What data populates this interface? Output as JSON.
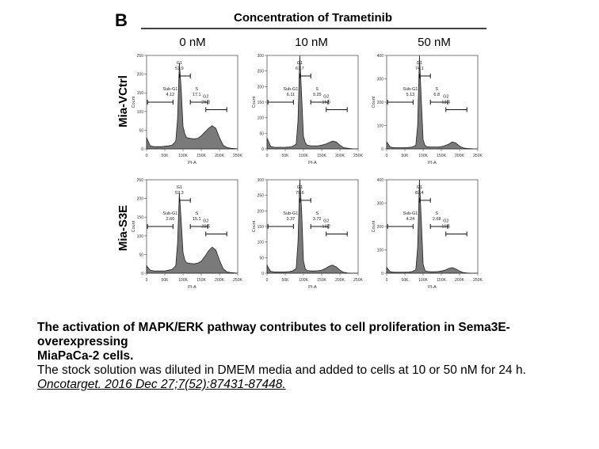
{
  "figure": {
    "panel_letter": "B",
    "header": "Concentration of Trametinib",
    "columns": [
      "0 nM",
      "10 nM",
      "50 nM"
    ],
    "rows": [
      "Mia-VCtrl",
      "Mia-S3E"
    ],
    "x_axis_label": "PI-A",
    "y_axis_label": "Count",
    "x_ticks": [
      "0",
      "50K",
      "100K",
      "150K",
      "200K",
      "250K"
    ],
    "gate_names": [
      "Sub-G1",
      "G1",
      "S",
      "G2"
    ]
  },
  "chart_data": [
    {
      "type": "area",
      "row": "Mia-VCtrl",
      "column": "0 nM",
      "xlabel": "PI-A",
      "ylabel": "Count",
      "xlim": [
        0,
        250000
      ],
      "y_ticks": [
        "0",
        "50",
        "100",
        "150",
        "200",
        "250"
      ],
      "ylim": [
        0,
        250
      ],
      "gates": {
        "Sub-G1": 4.12,
        "G1": 51.9,
        "S": 17.1,
        "G2": 26.3
      },
      "x": [
        0,
        10000,
        20000,
        30000,
        40000,
        50000,
        60000,
        70000,
        80000,
        85000,
        90000,
        95000,
        100000,
        105000,
        110000,
        120000,
        130000,
        140000,
        150000,
        160000,
        170000,
        180000,
        190000,
        200000,
        210000,
        220000,
        230000,
        240000,
        250000
      ],
      "y": [
        30,
        8,
        6,
        6,
        6,
        7,
        8,
        10,
        20,
        80,
        230,
        160,
        60,
        40,
        30,
        28,
        27,
        28,
        35,
        45,
        55,
        62,
        55,
        30,
        10,
        4,
        2,
        1,
        0
      ]
    },
    {
      "type": "area",
      "row": "Mia-VCtrl",
      "column": "10 nM",
      "xlabel": "PI-A",
      "ylabel": "Count",
      "xlim": [
        0,
        250000
      ],
      "y_ticks": [
        "0",
        "50",
        "100",
        "150",
        "200",
        "250",
        "300"
      ],
      "ylim": [
        0,
        300
      ],
      "gates": {
        "Sub-G1": 6.11,
        "G1": 67.7,
        "S": 9.25,
        "G2": 16.5
      },
      "x": [
        0,
        10000,
        20000,
        30000,
        40000,
        50000,
        60000,
        70000,
        80000,
        85000,
        90000,
        95000,
        100000,
        105000,
        110000,
        120000,
        130000,
        140000,
        150000,
        160000,
        170000,
        180000,
        190000,
        200000,
        210000,
        220000,
        230000,
        240000,
        250000
      ],
      "y": [
        35,
        8,
        5,
        5,
        5,
        5,
        6,
        8,
        15,
        90,
        300,
        170,
        40,
        20,
        12,
        10,
        10,
        10,
        12,
        15,
        20,
        25,
        22,
        12,
        4,
        2,
        1,
        0,
        0
      ]
    },
    {
      "type": "area",
      "row": "Mia-VCtrl",
      "column": "50 nM",
      "xlabel": "PI-A",
      "ylabel": "Count",
      "xlim": [
        0,
        250000
      ],
      "y_ticks": [
        "0",
        "100",
        "200",
        "300",
        "400"
      ],
      "ylim": [
        0,
        400
      ],
      "gates": {
        "Sub-G1": 5.13,
        "G1": 74.1,
        "S": 6.8,
        "G2": 13.4
      },
      "x": [
        0,
        10000,
        20000,
        30000,
        40000,
        50000,
        60000,
        70000,
        80000,
        85000,
        90000,
        95000,
        100000,
        105000,
        110000,
        120000,
        130000,
        140000,
        150000,
        160000,
        170000,
        180000,
        190000,
        200000,
        210000,
        220000,
        230000,
        240000,
        250000
      ],
      "y": [
        30,
        8,
        5,
        5,
        5,
        5,
        6,
        8,
        15,
        100,
        420,
        210,
        40,
        15,
        10,
        8,
        8,
        8,
        10,
        14,
        20,
        30,
        25,
        12,
        4,
        2,
        1,
        0,
        0
      ]
    },
    {
      "type": "area",
      "row": "Mia-S3E",
      "column": "0 nM",
      "xlabel": "PI-A",
      "ylabel": "Count",
      "xlim": [
        0,
        250000
      ],
      "y_ticks": [
        "0",
        "50",
        "100",
        "150",
        "200",
        "250"
      ],
      "ylim": [
        0,
        250
      ],
      "gates": {
        "Sub-G1": 2.66,
        "G1": 52.3,
        "S": 15.1,
        "G2": 29.5
      },
      "x": [
        0,
        10000,
        20000,
        30000,
        40000,
        50000,
        60000,
        70000,
        80000,
        85000,
        90000,
        95000,
        100000,
        105000,
        110000,
        120000,
        130000,
        140000,
        150000,
        160000,
        170000,
        180000,
        190000,
        200000,
        210000,
        220000,
        230000,
        240000,
        250000
      ],
      "y": [
        20,
        8,
        6,
        6,
        6,
        6,
        8,
        10,
        20,
        80,
        215,
        140,
        55,
        35,
        28,
        26,
        25,
        27,
        32,
        45,
        60,
        70,
        62,
        35,
        12,
        4,
        2,
        1,
        0
      ]
    },
    {
      "type": "area",
      "row": "Mia-S3E",
      "column": "10 nM",
      "xlabel": "PI-A",
      "ylabel": "Count",
      "xlim": [
        0,
        250000
      ],
      "y_ticks": [
        "0",
        "50",
        "100",
        "150",
        "200",
        "250",
        "300"
      ],
      "ylim": [
        0,
        300
      ],
      "gates": {
        "Sub-G1": 3.37,
        "G1": 79.6,
        "S": 3.72,
        "G2": 13.2
      },
      "x": [
        0,
        10000,
        20000,
        30000,
        40000,
        50000,
        60000,
        70000,
        80000,
        85000,
        90000,
        95000,
        100000,
        105000,
        110000,
        120000,
        130000,
        140000,
        150000,
        160000,
        170000,
        180000,
        190000,
        200000,
        210000,
        220000,
        230000,
        240000,
        250000
      ],
      "y": [
        25,
        6,
        4,
        4,
        4,
        4,
        5,
        7,
        15,
        100,
        310,
        200,
        40,
        14,
        9,
        7,
        7,
        8,
        10,
        15,
        22,
        26,
        20,
        10,
        3,
        1,
        0,
        0,
        0
      ]
    },
    {
      "type": "area",
      "row": "Mia-S3E",
      "column": "50 nM",
      "xlabel": "PI-A",
      "ylabel": "Count",
      "xlim": [
        0,
        250000
      ],
      "y_ticks": [
        "0",
        "100",
        "200",
        "300",
        "400"
      ],
      "ylim": [
        0,
        400
      ],
      "gates": {
        "Sub-G1": 4.24,
        "G1": 82.4,
        "S": 2.68,
        "G2": 10.6
      },
      "x": [
        0,
        10000,
        20000,
        30000,
        40000,
        50000,
        60000,
        70000,
        80000,
        85000,
        90000,
        95000,
        100000,
        105000,
        110000,
        120000,
        130000,
        140000,
        150000,
        160000,
        170000,
        180000,
        190000,
        200000,
        210000,
        220000,
        230000,
        240000,
        250000
      ],
      "y": [
        25,
        6,
        4,
        4,
        4,
        4,
        5,
        7,
        15,
        110,
        400,
        230,
        40,
        12,
        8,
        6,
        6,
        7,
        9,
        13,
        20,
        24,
        18,
        9,
        3,
        1,
        0,
        0,
        0
      ]
    }
  ],
  "caption": {
    "title": "The activation of MAPK/ERK pathway contributes to cell proliferation in Sema3E-overexpressing",
    "title2": "MiaPaCa-2 cells.",
    "body": "The stock solution was diluted in DMEM media and added to cells at 10 or 50 nM for 24 h. ",
    "citation": "Oncotarget. 2016 Dec 27;7(52):87431-87448."
  }
}
